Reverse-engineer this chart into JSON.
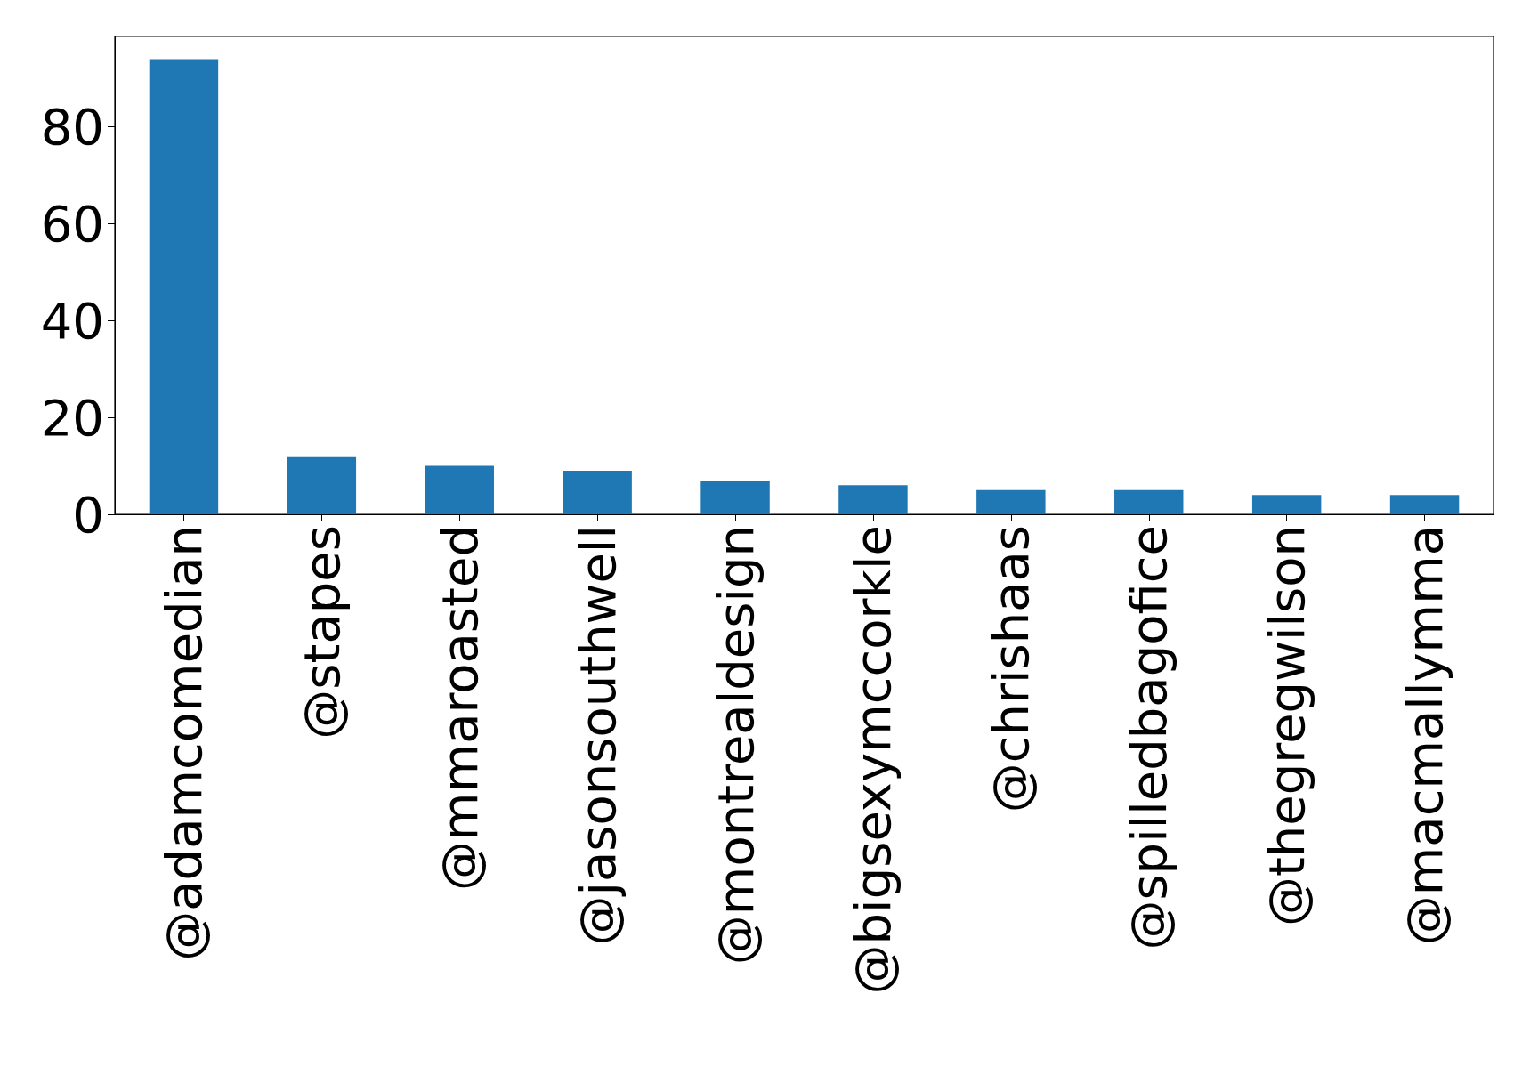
{
  "chart_data": {
    "type": "bar",
    "categories": [
      "@adamcomedian",
      "@stapes",
      "@mmaroasted",
      "@jasonsouthwell",
      "@montrealdesign",
      "@bigsexymccorkle",
      "@chrishaas",
      "@spilledbagofice",
      "@thegregwilson",
      "@macmallymma"
    ],
    "values": [
      94,
      12,
      10,
      9,
      7,
      6,
      5,
      5,
      4,
      4
    ],
    "color": "#1f77b4",
    "ylim": [
      0,
      98.7
    ],
    "yticks": [
      0,
      20,
      40,
      60,
      80
    ],
    "grid": false
  }
}
